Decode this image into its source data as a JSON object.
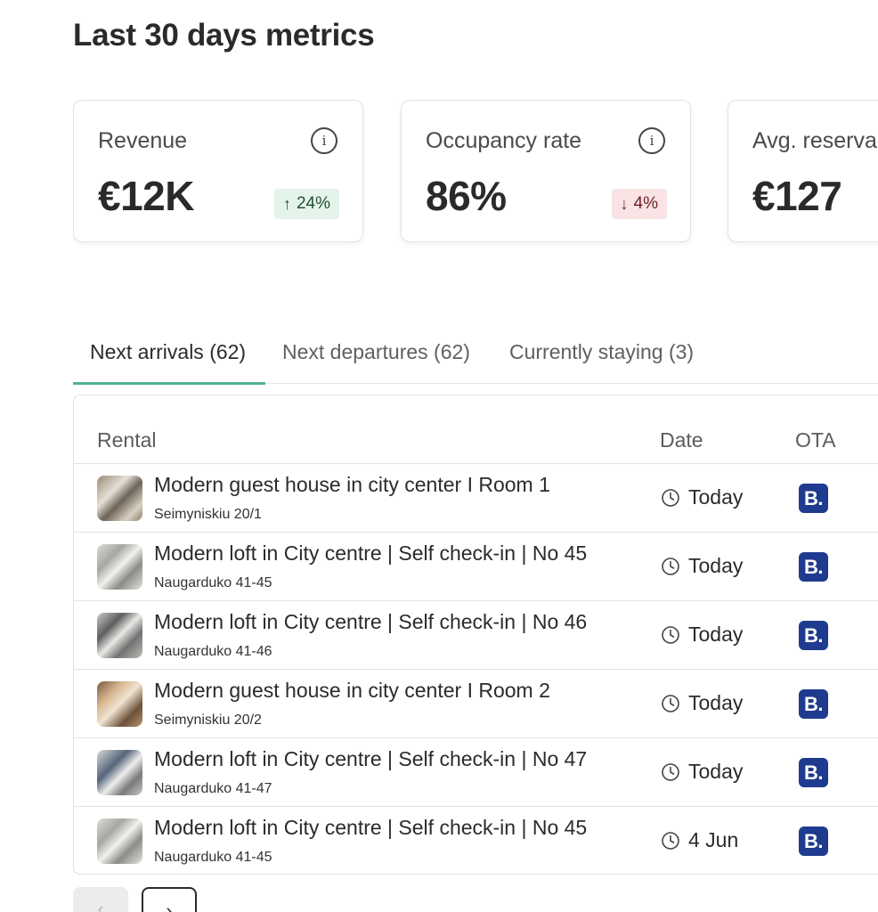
{
  "page": {
    "title": "Last 30 days metrics"
  },
  "metrics": [
    {
      "label": "Revenue",
      "value": "€12K",
      "change": "24%",
      "direction": "up",
      "info_icon": "i"
    },
    {
      "label": "Occupancy rate",
      "value": "86%",
      "change": "4%",
      "direction": "down",
      "info_icon": "i"
    },
    {
      "label": "Avg. reserva",
      "value": "€127"
    }
  ],
  "arrows": {
    "up": "↑",
    "down": "↓"
  },
  "tabs": [
    {
      "label": "Next arrivals (62)",
      "active": true
    },
    {
      "label": "Next departures (62)",
      "active": false
    },
    {
      "label": "Currently staying (3)",
      "active": false
    }
  ],
  "table": {
    "headers": {
      "rental": "Rental",
      "date": "Date",
      "ota": "OTA"
    },
    "rows": [
      {
        "name": "Modern guest house in city center I Room 1",
        "address": "Seimyniskiu 20/1",
        "date": "Today",
        "ota": "B."
      },
      {
        "name": "Modern loft in City centre | Self check-in | No 45",
        "address": "Naugarduko 41-45",
        "date": "Today",
        "ota": "B."
      },
      {
        "name": "Modern loft in City centre | Self check-in | No 46",
        "address": "Naugarduko 41-46",
        "date": "Today",
        "ota": "B."
      },
      {
        "name": "Modern guest house in city center I Room 2",
        "address": "Seimyniskiu 20/2",
        "date": "Today",
        "ota": "B."
      },
      {
        "name": "Modern loft in City centre | Self check-in | No 47",
        "address": "Naugarduko 41-47",
        "date": "Today",
        "ota": "B."
      },
      {
        "name": "Modern loft in City centre | Self check-in | No 45",
        "address": "Naugarduko 41-45",
        "date": "4 Jun",
        "ota": "B."
      }
    ]
  },
  "pagination": {
    "prev": "‹",
    "next": "›"
  },
  "colors": {
    "accent": "#4fb58c",
    "badge_up_bg": "#e5f4ea",
    "badge_down_bg": "#f9e3e4",
    "booking_blue": "#1f3b8f"
  }
}
